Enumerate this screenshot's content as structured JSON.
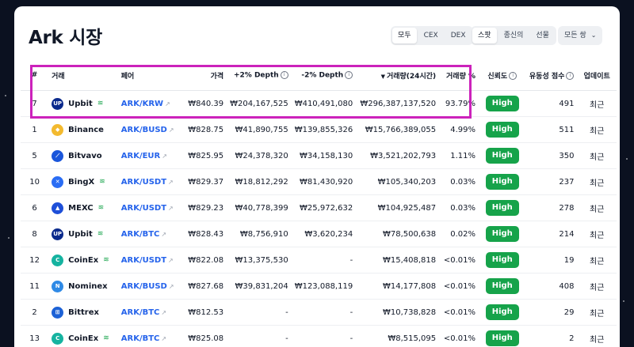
{
  "header": {
    "title": "Ark 시장"
  },
  "filters": {
    "market_type": [
      "모두",
      "CEX",
      "DEX"
    ],
    "market_type_active": 0,
    "trade_type": [
      "스팟",
      "종신의",
      "선물"
    ],
    "trade_type_active": 0,
    "pair_dropdown": "모든 쌍"
  },
  "colors": {
    "high_badge": "#16a34a",
    "pair_link": "#2563eb",
    "highlight_box": "#cc22bb"
  },
  "table": {
    "headers": {
      "rank": "#",
      "exchange": "거래",
      "pair": "페어",
      "price": "가격",
      "depth_plus": "+2% Depth",
      "depth_minus": "-2% Depth",
      "volume": "거래량(24시간)",
      "volume_pct": "거래량 %",
      "trust": "신뢰도",
      "liquidity": "유동성 점수",
      "updated": "업데이트"
    },
    "rows": [
      {
        "rank": "7",
        "exchange": "Upbit",
        "logo": "upbit-logo",
        "pair": "ARK/KRW",
        "price": "₩840.39",
        "depth_plus": "₩204,167,525",
        "depth_minus": "₩410,491,080",
        "volume": "₩296,387,137,520",
        "volume_pct": "93.79%",
        "trust": "High",
        "liquidity": "491",
        "updated": "최근"
      },
      {
        "rank": "1",
        "exchange": "Binance",
        "logo": "binance-logo",
        "pair": "ARK/BUSD",
        "price": "₩828.75",
        "depth_plus": "₩41,890,755",
        "depth_minus": "₩139,855,326",
        "volume": "₩15,766,389,055",
        "volume_pct": "4.99%",
        "trust": "High",
        "liquidity": "511",
        "updated": "최근"
      },
      {
        "rank": "5",
        "exchange": "Bitvavo",
        "logo": "bitvavo-logo",
        "pair": "ARK/EUR",
        "price": "₩825.95",
        "depth_plus": "₩24,378,320",
        "depth_minus": "₩34,158,130",
        "volume": "₩3,521,202,793",
        "volume_pct": "1.11%",
        "trust": "High",
        "liquidity": "350",
        "updated": "최근"
      },
      {
        "rank": "10",
        "exchange": "BingX",
        "logo": "bingx-logo",
        "pair": "ARK/USDT",
        "price": "₩829.37",
        "depth_plus": "₩18,812,292",
        "depth_minus": "₩81,430,920",
        "volume": "₩105,340,203",
        "volume_pct": "0.03%",
        "trust": "High",
        "liquidity": "237",
        "updated": "최근"
      },
      {
        "rank": "6",
        "exchange": "MEXC",
        "logo": "mexc-logo",
        "pair": "ARK/USDT",
        "price": "₩829.23",
        "depth_plus": "₩40,778,399",
        "depth_minus": "₩25,972,632",
        "volume": "₩104,925,487",
        "volume_pct": "0.03%",
        "trust": "High",
        "liquidity": "278",
        "updated": "최근"
      },
      {
        "rank": "8",
        "exchange": "Upbit",
        "logo": "upbit-logo",
        "pair": "ARK/BTC",
        "price": "₩828.43",
        "depth_plus": "₩8,756,910",
        "depth_minus": "₩3,620,234",
        "volume": "₩78,500,638",
        "volume_pct": "0.02%",
        "trust": "High",
        "liquidity": "214",
        "updated": "최근"
      },
      {
        "rank": "12",
        "exchange": "CoinEx",
        "logo": "coinex-logo",
        "pair": "ARK/USDT",
        "price": "₩822.08",
        "depth_plus": "₩13,375,530",
        "depth_minus": "-",
        "volume": "₩15,408,818",
        "volume_pct": "<0.01%",
        "trust": "High",
        "liquidity": "19",
        "updated": "최근"
      },
      {
        "rank": "11",
        "exchange": "Nominex",
        "logo": "nominex-logo",
        "pair": "ARK/BUSD",
        "price": "₩827.68",
        "depth_plus": "₩39,831,204",
        "depth_minus": "₩123,088,119",
        "volume": "₩14,177,808",
        "volume_pct": "<0.01%",
        "trust": "High",
        "liquidity": "408",
        "updated": "최근"
      },
      {
        "rank": "2",
        "exchange": "Bittrex",
        "logo": "bittrex-logo",
        "pair": "ARK/BTC",
        "price": "₩812.53",
        "depth_plus": "-",
        "depth_minus": "-",
        "volume": "₩10,738,828",
        "volume_pct": "<0.01%",
        "trust": "High",
        "liquidity": "29",
        "updated": "최근"
      },
      {
        "rank": "13",
        "exchange": "CoinEx",
        "logo": "coinex-logo",
        "pair": "ARK/BTC",
        "price": "₩825.08",
        "depth_plus": "-",
        "depth_minus": "-",
        "volume": "₩8,515,095",
        "volume_pct": "<0.01%",
        "trust": "High",
        "liquidity": "2",
        "updated": "최근"
      }
    ]
  }
}
